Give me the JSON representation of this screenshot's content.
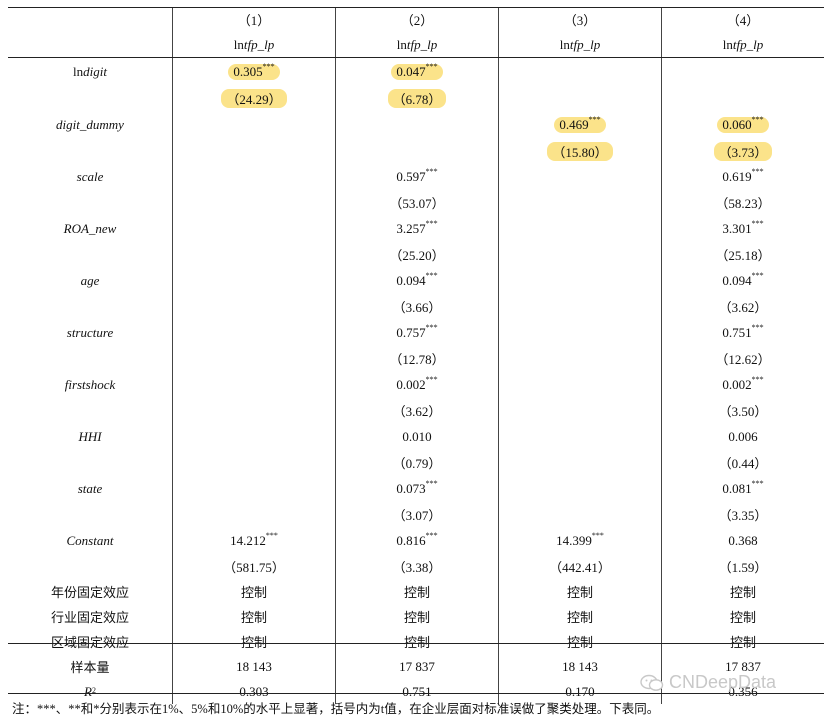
{
  "columns": [
    "（1）",
    "（2）",
    "（3）",
    "（4）"
  ],
  "depvar": "lntfp_lp",
  "rows": [
    {
      "label": "lndigit",
      "upright": "ln",
      "ital": "digit",
      "vals": [
        "0.305|***|H",
        "0.047|***|H",
        "",
        ""
      ],
      "h": 29
    },
    {
      "label": "",
      "vals": [
        "（24.29）|H",
        "（6.78）|H",
        "",
        ""
      ],
      "h": 24
    },
    {
      "label": "digit_dummy",
      "ital": "digit_dummy",
      "vals": [
        "",
        "",
        "0.469|***|H",
        "0.060|***|H"
      ],
      "h": 29
    },
    {
      "label": "",
      "vals": [
        "",
        "",
        "（15.80）|H",
        "（3.73）|H"
      ],
      "h": 24
    },
    {
      "label": "scale",
      "ital": "scale",
      "vals": [
        "",
        "0.597|***",
        "",
        "0.619|***"
      ],
      "h": 27
    },
    {
      "label": "",
      "vals": [
        "",
        "（53.07）",
        "",
        "（58.23）"
      ],
      "h": 25
    },
    {
      "label": "ROA_new",
      "ital": "ROA_new",
      "vals": [
        "",
        "3.257|***",
        "",
        "3.301|***"
      ],
      "h": 27
    },
    {
      "label": "",
      "vals": [
        "",
        "（25.20）",
        "",
        "（25.18）"
      ],
      "h": 25
    },
    {
      "label": "age",
      "ital": "age",
      "vals": [
        "",
        "0.094|***",
        "",
        "0.094|***"
      ],
      "h": 27
    },
    {
      "label": "",
      "vals": [
        "",
        "（3.66）",
        "",
        "（3.62）"
      ],
      "h": 25
    },
    {
      "label": "structure",
      "ital": "structure",
      "vals": [
        "",
        "0.757|***",
        "",
        "0.751|***"
      ],
      "h": 27
    },
    {
      "label": "",
      "vals": [
        "",
        "（12.78）",
        "",
        "（12.62）"
      ],
      "h": 25
    },
    {
      "label": "firstshock",
      "ital": "firstshock",
      "vals": [
        "",
        "0.002|***",
        "",
        "0.002|***"
      ],
      "h": 27
    },
    {
      "label": "",
      "vals": [
        "",
        "（3.62）",
        "",
        "（3.50）"
      ],
      "h": 25
    },
    {
      "label": "HHI",
      "ital": "HHI",
      "vals": [
        "",
        "0.010",
        "",
        "0.006"
      ],
      "h": 27
    },
    {
      "label": "",
      "vals": [
        "",
        "（0.79）",
        "",
        "（0.44）"
      ],
      "h": 25
    },
    {
      "label": "state",
      "ital": "state",
      "vals": [
        "",
        "0.073|***",
        "",
        "0.081|***"
      ],
      "h": 27
    },
    {
      "label": "",
      "vals": [
        "",
        "（3.07）",
        "",
        "（3.35）"
      ],
      "h": 25
    },
    {
      "label": "Constant",
      "ital": "Constant",
      "vals": [
        "14.212|***",
        "0.816|***",
        "14.399|***",
        "0.368"
      ],
      "h": 27
    },
    {
      "label": "",
      "vals": [
        "（581.75）",
        "（3.38）",
        "（442.41）",
        "（1.59）"
      ],
      "h": 25
    },
    {
      "label": "年份固定效应",
      "cn": true,
      "vals": [
        "控制",
        "控制",
        "控制",
        "控制"
      ],
      "h": 25
    },
    {
      "label": "行业固定效应",
      "cn": true,
      "vals": [
        "控制",
        "控制",
        "控制",
        "控制"
      ],
      "h": 25
    },
    {
      "label": "区域固定效应",
      "cn": true,
      "vals": [
        "控制",
        "控制",
        "控制",
        "控制"
      ],
      "h": 25
    }
  ],
  "stats": [
    {
      "label": "样本量",
      "cn": true,
      "vals": [
        "18 143",
        "17 837",
        "18 143",
        "17 837"
      ]
    },
    {
      "label": "R",
      "sup": "2",
      "vals": [
        "0.303",
        "0.751",
        "0.170",
        "0.356"
      ]
    }
  ],
  "note": "注：***、**和*分别表示在1%、5%和10%的水平上显著，括号内为t值，在企业层面对标准误做了聚类处理。下表同。",
  "watermark": "CNDeepData"
}
